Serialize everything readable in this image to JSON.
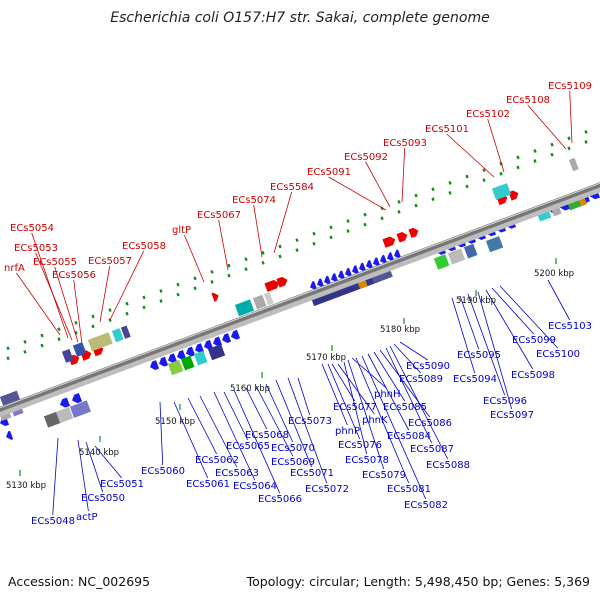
{
  "title": "Escherichia coli O157:H7 str. Sakai, complete genome",
  "footer": {
    "accession": "Accession: NC_002695",
    "summary": "Topology: circular; Length: 5,498,450 bp; Genes: 5,369"
  },
  "colors": {
    "forward_label": "#cc0000",
    "reverse_label": "#0000cc",
    "forward_gene": "#ee0000",
    "reverse_gene": "#1a1aee",
    "backbone": "#888888",
    "tick": "#1a8a1a"
  },
  "ticks": [
    "5130 kbp",
    "5140 kbp",
    "5150 kbp",
    "5160 kbp",
    "5170 kbp",
    "5180 kbp",
    "5190 kbp",
    "5200 kbp"
  ],
  "forward_labels": [
    "nrfA",
    "ECs5054",
    "ECs5053",
    "ECs5055",
    "ECs5056",
    "ECs5057",
    "ECs5058",
    "gltP",
    "ECs5067",
    "ECs5074",
    "ECs5584",
    "ECs5091",
    "ECs5092",
    "ECs5093",
    "ECs5101",
    "ECs5102",
    "ECs5108",
    "ECs5109"
  ],
  "reverse_labels": [
    "ECs5048",
    "actP",
    "ECs5050",
    "ECs5051",
    "ECs5060",
    "ECs5061",
    "ECs5062",
    "ECs5063",
    "ECs5064",
    "ECs5065",
    "ECs5066",
    "ECs5068",
    "ECs5069",
    "ECs5070",
    "ECs5071",
    "ECs5072",
    "ECs5073",
    "phnP",
    "ECs5076",
    "ECs5077",
    "phnK",
    "ECs5078",
    "ECs5079",
    "phnH",
    "ECs5081",
    "ECs5082",
    "ECs5084",
    "ECs5085",
    "ECs5086",
    "ECs5087",
    "ECs5088",
    "ECs5089",
    "ECs5090",
    "ECs5094",
    "ECs5095",
    "ECs5096",
    "ECs5097",
    "ECs5098",
    "ECs5099",
    "ECs5100",
    "ECs5103"
  ]
}
